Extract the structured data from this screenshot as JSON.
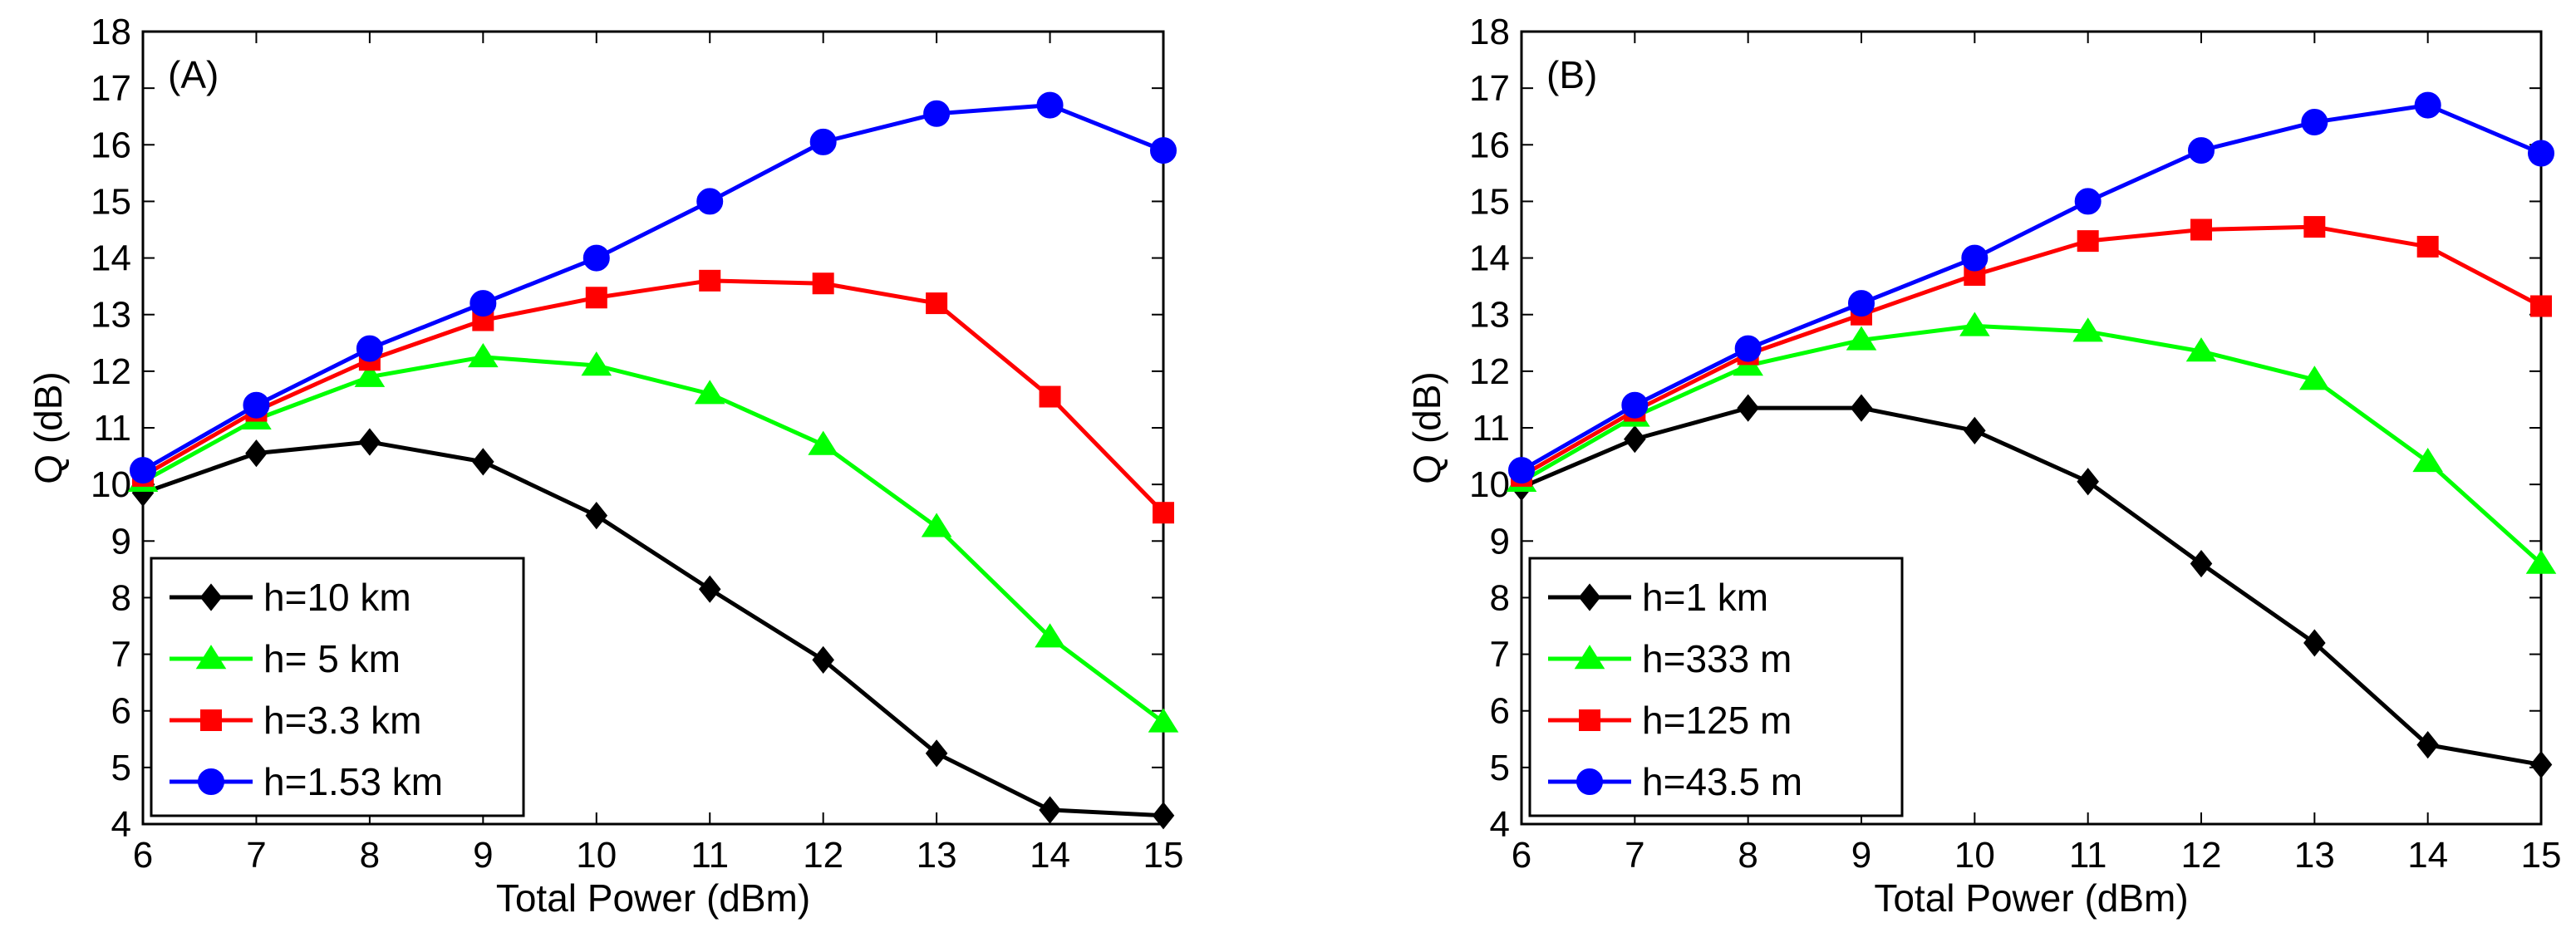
{
  "chart_data": [
    {
      "type": "line",
      "panel_label": "(A)",
      "xlabel": "Total Power (dBm)",
      "ylabel": "Q (dB)",
      "xlim": [
        6,
        15
      ],
      "ylim": [
        4,
        18
      ],
      "xticks": [
        6,
        7,
        8,
        9,
        10,
        11,
        12,
        13,
        14,
        15
      ],
      "yticks": [
        4,
        5,
        6,
        7,
        8,
        9,
        10,
        11,
        12,
        13,
        14,
        15,
        16,
        17,
        18
      ],
      "x": [
        6,
        7,
        8,
        9,
        10,
        11,
        12,
        13,
        14,
        15
      ],
      "legend_position": "bottom-left",
      "series": [
        {
          "name": "h=10 km",
          "color": "#000000",
          "marker": "diamond",
          "values": [
            9.85,
            10.55,
            10.75,
            10.4,
            9.45,
            8.15,
            6.9,
            5.25,
            4.25,
            4.15
          ]
        },
        {
          "name": "h= 5 km",
          "color": "#00ff00",
          "marker": "triangle",
          "values": [
            10.05,
            11.15,
            11.9,
            12.25,
            12.1,
            11.6,
            10.7,
            9.25,
            7.3,
            5.8
          ]
        },
        {
          "name": "h=3.3 km",
          "color": "#ff0000",
          "marker": "square",
          "values": [
            10.15,
            11.3,
            12.2,
            12.9,
            13.3,
            13.6,
            13.55,
            13.2,
            11.55,
            9.5
          ]
        },
        {
          "name": "h=1.53 km",
          "color": "#0000ff",
          "marker": "circle",
          "values": [
            10.25,
            11.4,
            12.4,
            13.2,
            14.0,
            15.0,
            16.05,
            16.55,
            16.7,
            15.9
          ]
        }
      ]
    },
    {
      "type": "line",
      "panel_label": "(B)",
      "xlabel": "Total Power (dBm)",
      "ylabel": "Q (dB)",
      "xlim": [
        6,
        15
      ],
      "ylim": [
        4,
        18
      ],
      "xticks": [
        6,
        7,
        8,
        9,
        10,
        11,
        12,
        13,
        14,
        15
      ],
      "yticks": [
        4,
        5,
        6,
        7,
        8,
        9,
        10,
        11,
        12,
        13,
        14,
        15,
        16,
        17,
        18
      ],
      "x": [
        6,
        7,
        8,
        9,
        10,
        11,
        12,
        13,
        14,
        15
      ],
      "legend_position": "bottom-left",
      "series": [
        {
          "name": "h=1 km",
          "color": "#000000",
          "marker": "diamond",
          "values": [
            9.95,
            10.8,
            11.35,
            11.35,
            10.95,
            10.05,
            8.6,
            7.2,
            5.4,
            5.05
          ]
        },
        {
          "name": "h=333 m",
          "color": "#00ff00",
          "marker": "triangle",
          "values": [
            10.05,
            11.2,
            12.1,
            12.55,
            12.8,
            12.7,
            12.35,
            11.85,
            10.4,
            8.6
          ]
        },
        {
          "name": "h=125 m",
          "color": "#ff0000",
          "marker": "square",
          "values": [
            10.15,
            11.3,
            12.3,
            13.0,
            13.7,
            14.3,
            14.5,
            14.55,
            14.2,
            13.15
          ]
        },
        {
          "name": "h=43.5 m",
          "color": "#0000ff",
          "marker": "circle",
          "values": [
            10.25,
            11.4,
            12.4,
            13.2,
            14.0,
            15.0,
            15.9,
            16.4,
            16.7,
            15.85
          ]
        }
      ]
    }
  ]
}
